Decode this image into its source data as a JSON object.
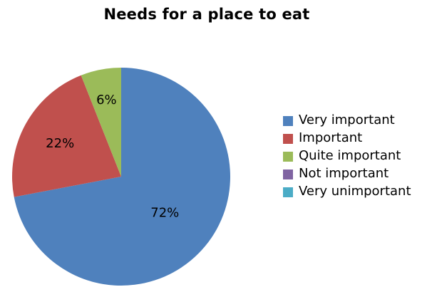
{
  "chart_data": {
    "type": "pie",
    "title": "Needs for a place to eat",
    "categories": [
      "Very important",
      "Important",
      "Quite important",
      "Not important",
      "Very unimportant"
    ],
    "values": [
      72,
      22,
      6,
      0,
      0
    ],
    "data_labels": [
      "72%",
      "22%",
      "6%",
      "",
      ""
    ],
    "colors": [
      "#4F81BD",
      "#C0504D",
      "#9BBB59",
      "#8064A2",
      "#4BACC6"
    ],
    "legend": {
      "placement": "right",
      "entries": [
        "Very important",
        "Important",
        "Quite important",
        "Not important",
        "Very unimportant"
      ]
    }
  }
}
